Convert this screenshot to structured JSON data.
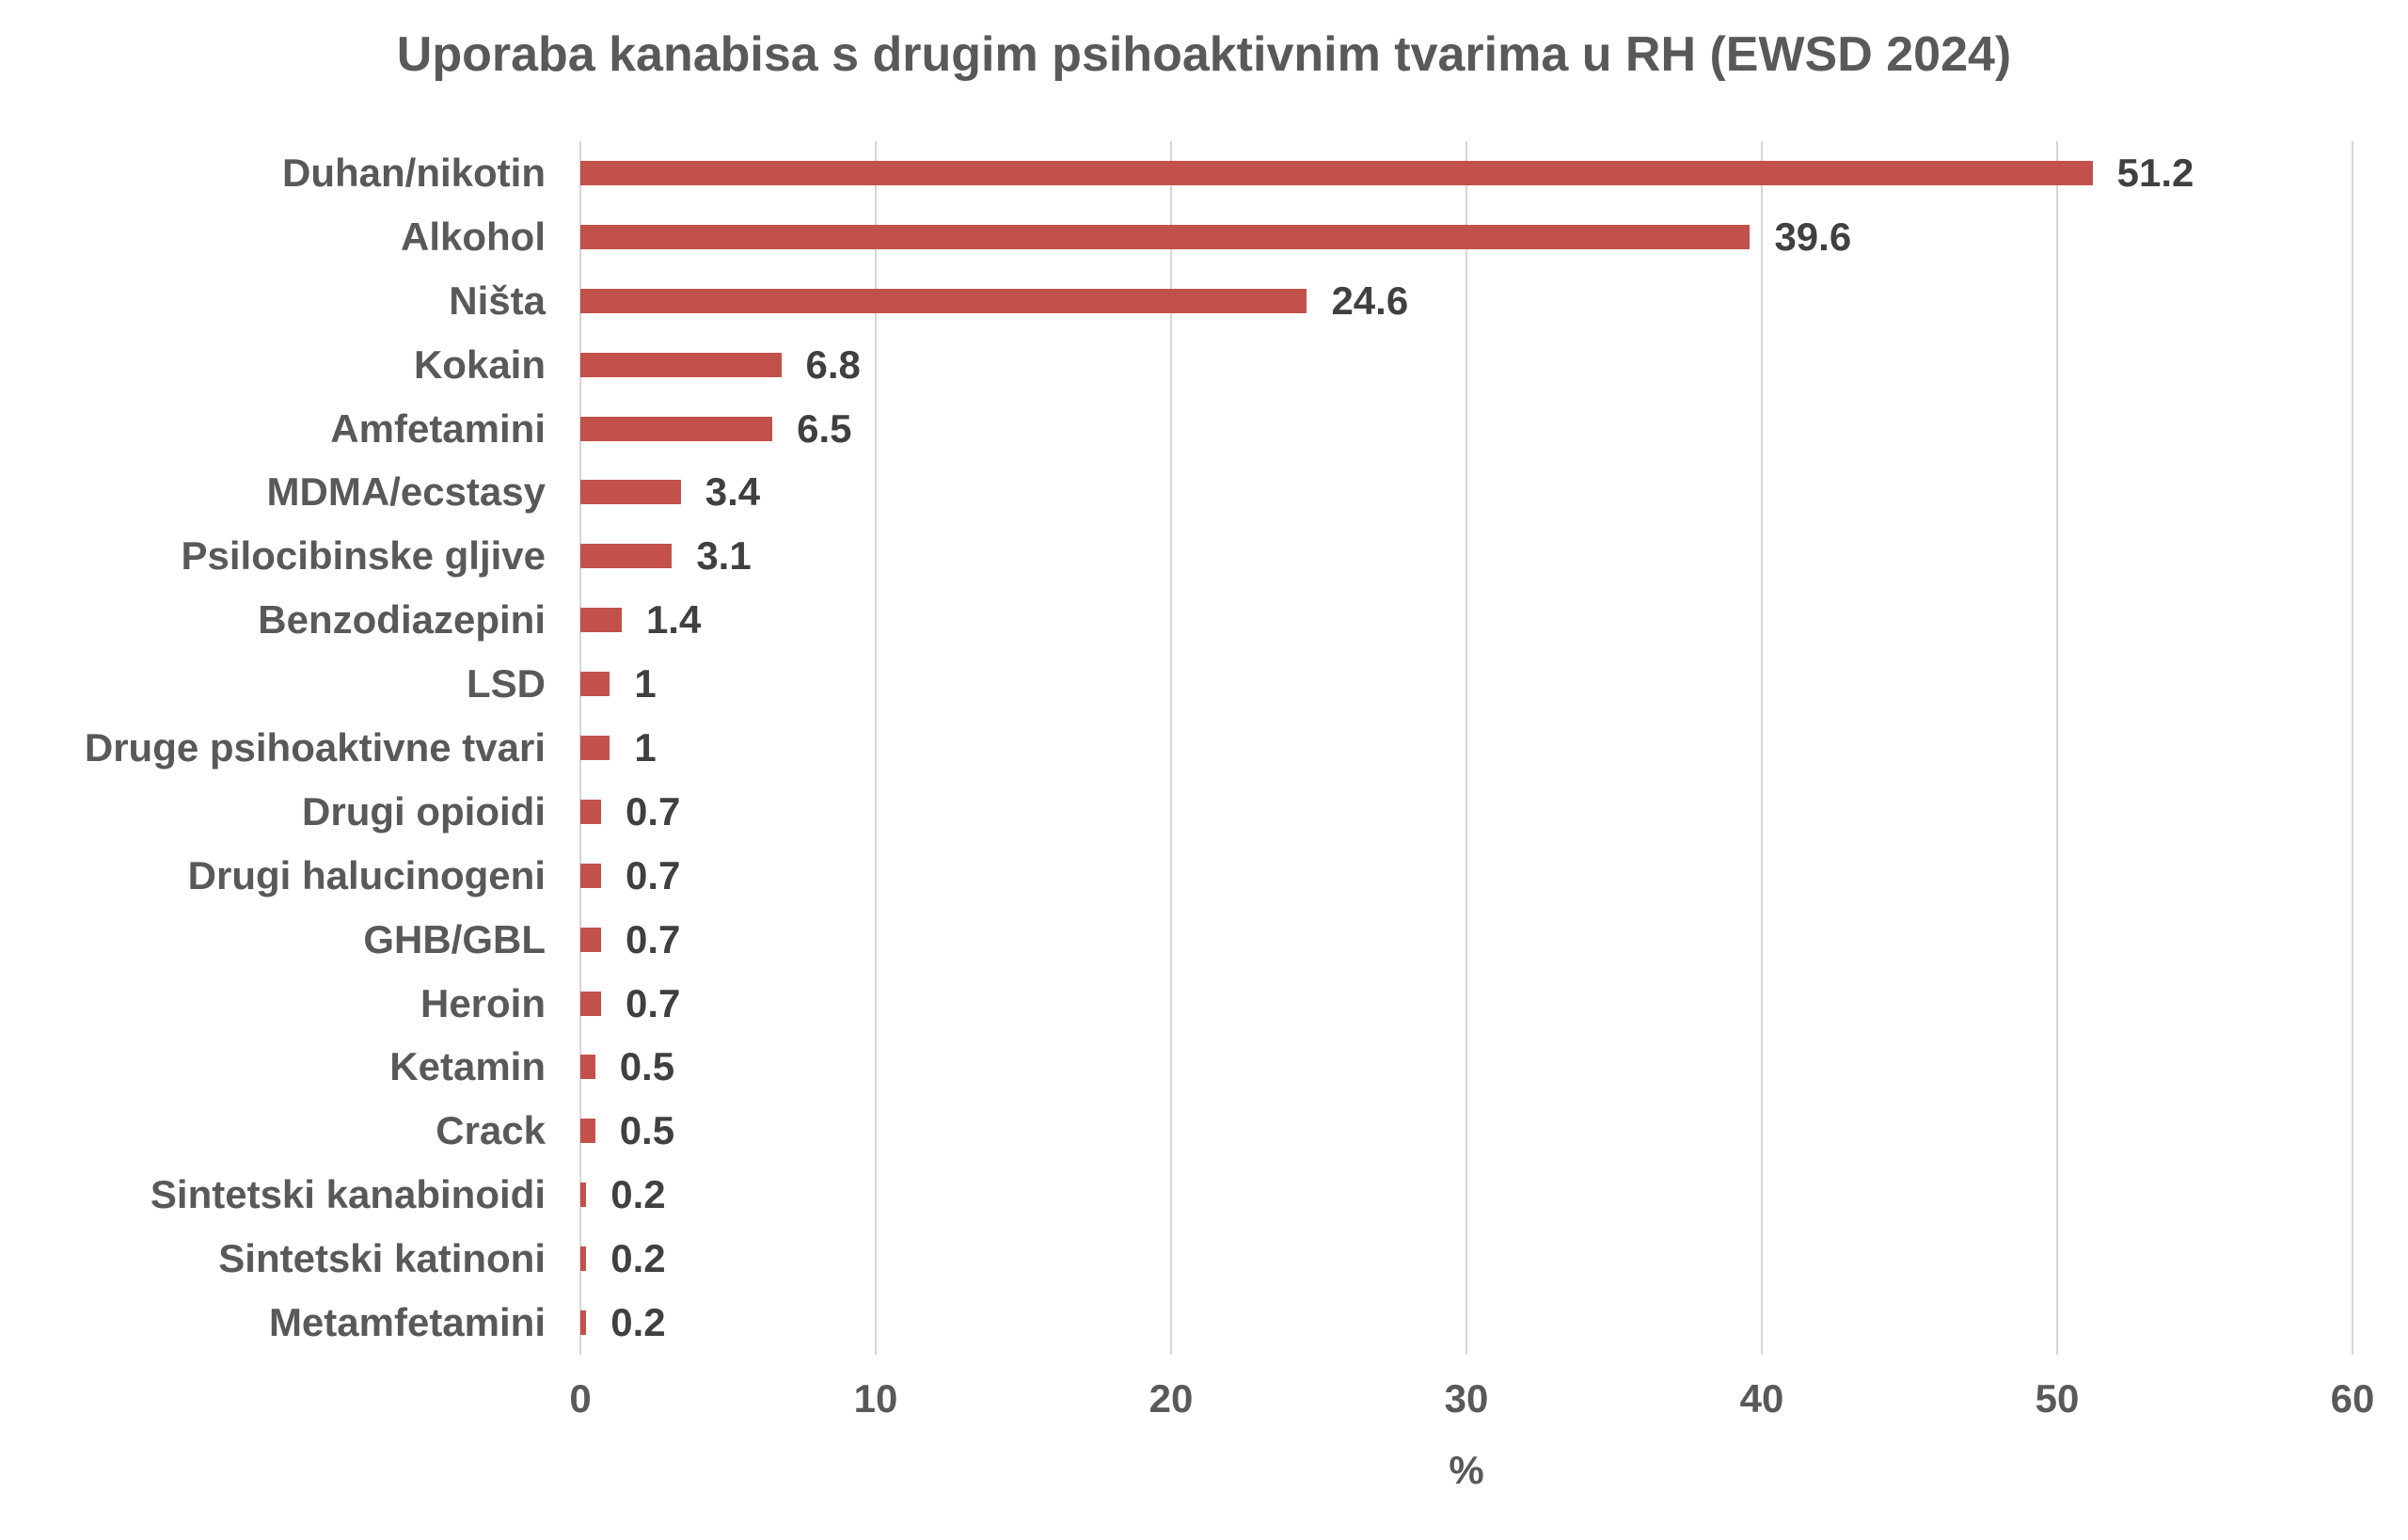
{
  "chart_data": {
    "type": "bar",
    "orientation": "horizontal",
    "title": "Uporaba kanabisa s drugim psihoaktivnim tvarima u RH (EWSD 2024)",
    "xlabel": "%",
    "xlim": [
      0,
      60
    ],
    "xticks": [
      "0",
      "10",
      "20",
      "30",
      "40",
      "50",
      "60"
    ],
    "grid": "vertical-on",
    "legend": "none",
    "categories": [
      "Duhan/nikotin",
      "Alkohol",
      "Ništa",
      "Kokain",
      "Amfetamini",
      "MDMA/ecstasy",
      "Psilocibinske gljive",
      "Benzodiazepini",
      "LSD",
      "Druge psihoaktivne tvari",
      "Drugi opioidi",
      "Drugi halucinogeni",
      "GHB/GBL",
      "Heroin",
      "Ketamin",
      "Crack",
      "Sintetski kanabinoidi",
      "Sintetski katinoni",
      "Metamfetamini"
    ],
    "values": [
      51.2,
      39.6,
      24.6,
      6.8,
      6.5,
      3.4,
      3.1,
      1.4,
      1,
      1,
      0.7,
      0.7,
      0.7,
      0.7,
      0.5,
      0.5,
      0.2,
      0.2,
      0.2
    ],
    "value_labels": [
      "51.2",
      "39.6",
      "24.6",
      "6.8",
      "6.5",
      "3.4",
      "3.1",
      "1.4",
      "1",
      "1",
      "0.7",
      "0.7",
      "0.7",
      "0.7",
      "0.5",
      "0.5",
      "0.2",
      "0.2",
      "0.2"
    ],
    "colors": {
      "bar": "#c3514b",
      "gridline": "#d6d6d6",
      "label": "#595959",
      "value_label": "#404040",
      "background": "#ffffff"
    }
  }
}
